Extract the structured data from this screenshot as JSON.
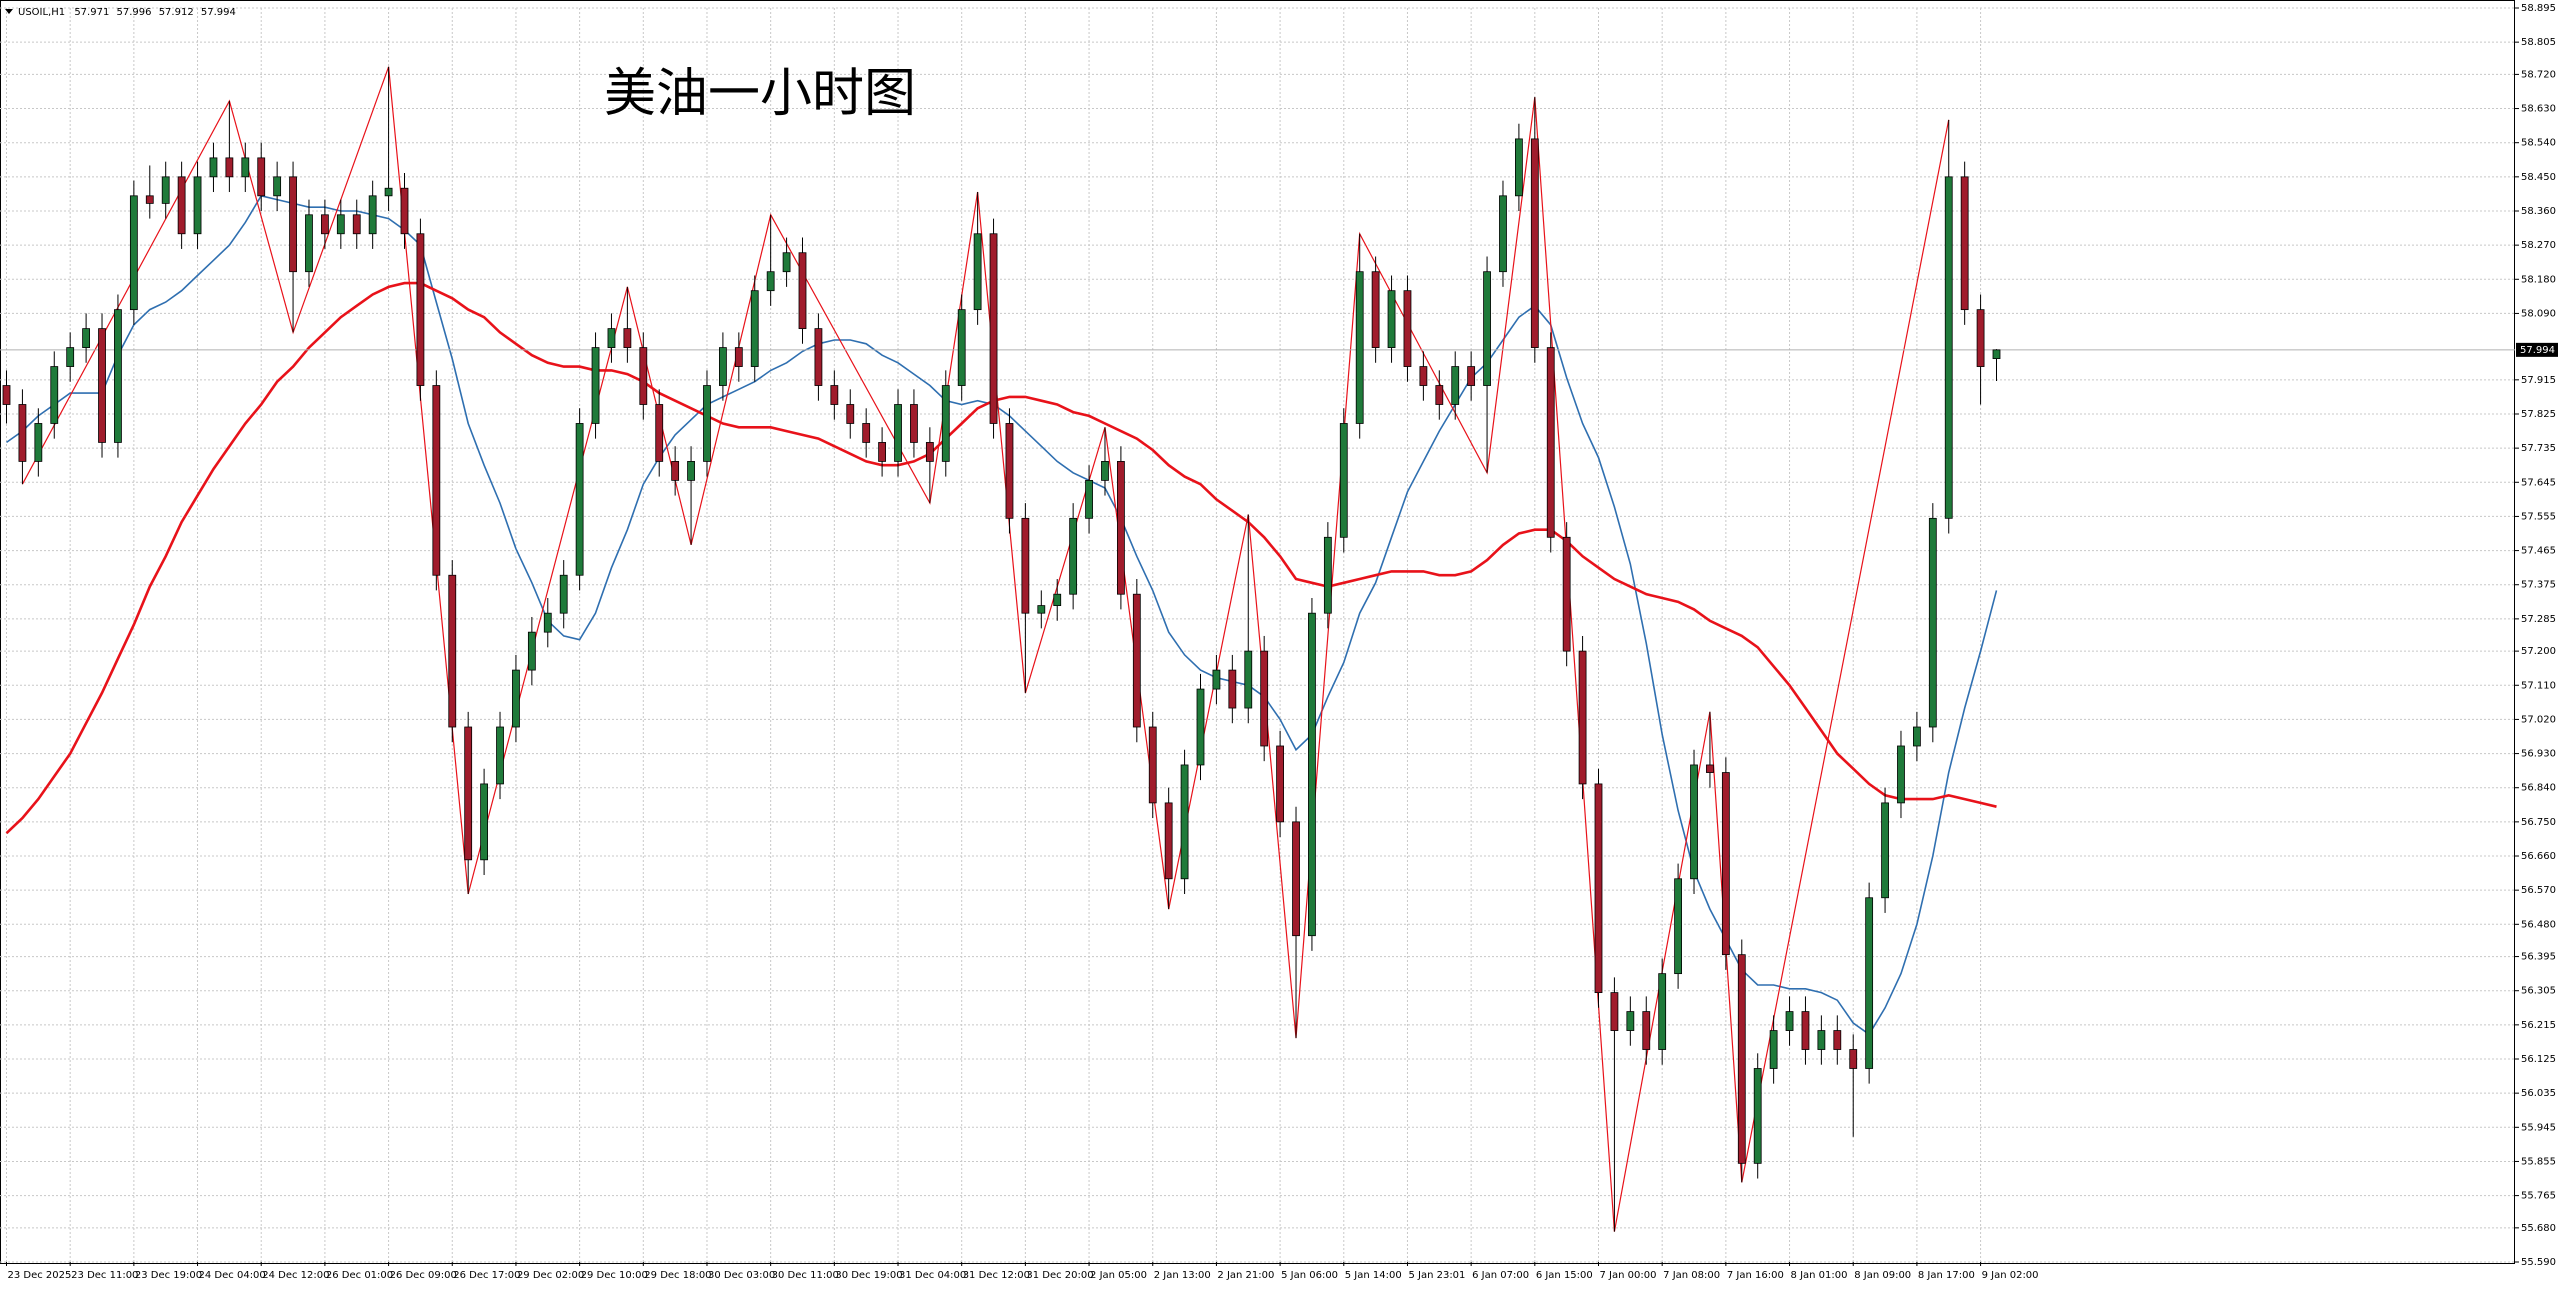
{
  "chart_data": {
    "type": "candlestick",
    "title": "美油一小时图",
    "symbol": "USOIL,H1",
    "bull_color": "#1f7a3a",
    "bear_color": "#a01c2c",
    "grid": true,
    "ylim": [
      55.59,
      58.895
    ],
    "yticks": [
      {
        "value": 55.59,
        "label": "55.590"
      },
      {
        "value": 55.68,
        "label": "55.680"
      },
      55.765,
      55.855,
      55.945,
      56.035,
      56.125,
      56.215,
      56.305,
      56.395,
      {
        "value": 56.48,
        "label": "56.480"
      },
      {
        "value": 56.57,
        "label": "56.570"
      },
      {
        "value": 56.66,
        "label": "56.660"
      },
      {
        "value": 56.75,
        "label": "56.750"
      },
      {
        "value": 56.84,
        "label": "56.840"
      },
      {
        "value": 56.93,
        "label": "56.930"
      },
      {
        "value": 57.02,
        "label": "57.020"
      },
      {
        "value": 57.11,
        "label": "57.110"
      },
      {
        "value": 57.2,
        "label": "57.200"
      },
      57.285,
      57.375,
      57.465,
      57.555,
      57.645,
      57.735,
      57.825,
      57.915,
      {
        "value": 58.09,
        "label": "58.090"
      },
      {
        "value": 58.18,
        "label": "58.180"
      },
      {
        "value": 58.27,
        "label": "58.270"
      },
      {
        "value": 58.36,
        "label": "58.360"
      },
      {
        "value": 58.45,
        "label": "58.450"
      },
      {
        "value": 58.54,
        "label": "58.540"
      },
      {
        "value": 58.63,
        "label": "58.630"
      },
      {
        "value": 58.72,
        "label": "58.720"
      },
      58.805,
      58.895
    ],
    "categories": [
      "23 Dec 2025",
      null,
      null,
      null,
      "23 Dec 11:00",
      null,
      null,
      null,
      "23 Dec 19:00",
      null,
      null,
      null,
      "24 Dec 04:00",
      null,
      null,
      null,
      "24 Dec 12:00",
      null,
      null,
      null,
      "26 Dec 01:00",
      null,
      null,
      null,
      "26 Dec 09:00",
      null,
      null,
      null,
      "26 Dec 17:00",
      null,
      null,
      null,
      "29 Dec 02:00",
      null,
      null,
      null,
      "29 Dec 10:00",
      null,
      null,
      null,
      "29 Dec 18:00",
      null,
      null,
      null,
      "30 Dec 03:00",
      null,
      null,
      null,
      "30 Dec 11:00",
      null,
      null,
      null,
      "30 Dec 19:00",
      null,
      null,
      null,
      "31 Dec 04:00",
      null,
      null,
      null,
      "31 Dec 12:00",
      null,
      null,
      null,
      "31 Dec 20:00",
      null,
      null,
      null,
      "2 Jan 05:00",
      null,
      null,
      null,
      "2 Jan 13:00",
      null,
      null,
      null,
      "2 Jan 21:00",
      null,
      null,
      null,
      "5 Jan 06:00",
      null,
      null,
      null,
      "5 Jan 14:00",
      null,
      null,
      null,
      "5 Jan 23:01",
      null,
      null,
      null,
      "6 Jan 07:00",
      null,
      null,
      null,
      "6 Jan 15:00",
      null,
      null,
      null,
      "7 Jan 00:00",
      null,
      null,
      null,
      "7 Jan 08:00",
      null,
      null,
      null,
      "7 Jan 16:00",
      null,
      null,
      null,
      "8 Jan 01:00",
      null,
      null,
      null,
      "8 Jan 09:00",
      null,
      null,
      null,
      "8 Jan 17:00",
      null,
      null,
      null,
      "9 Jan 02:00",
      null
    ],
    "ohlc": [
      [
        57.9,
        57.94,
        57.8,
        57.85
      ],
      [
        57.85,
        57.89,
        57.64,
        57.7
      ],
      [
        57.7,
        57.84,
        57.66,
        57.8
      ],
      [
        57.8,
        57.99,
        57.76,
        57.95
      ],
      [
        57.95,
        58.04,
        57.91,
        58.0
      ],
      [
        58.0,
        58.09,
        57.96,
        58.05
      ],
      [
        58.05,
        58.09,
        57.71,
        57.75
      ],
      [
        57.75,
        58.14,
        57.71,
        58.1
      ],
      [
        58.1,
        58.44,
        58.06,
        58.4
      ],
      [
        58.4,
        58.48,
        58.34,
        58.38
      ],
      [
        58.38,
        58.49,
        58.34,
        58.45
      ],
      [
        58.45,
        58.49,
        58.26,
        58.3
      ],
      [
        58.3,
        58.49,
        58.26,
        58.45
      ],
      [
        58.45,
        58.54,
        58.41,
        58.5
      ],
      [
        58.5,
        58.65,
        58.41,
        58.45
      ],
      [
        58.45,
        58.54,
        58.41,
        58.5
      ],
      [
        58.5,
        58.54,
        58.36,
        58.4
      ],
      [
        58.4,
        58.49,
        58.36,
        58.45
      ],
      [
        58.45,
        58.49,
        58.04,
        58.2
      ],
      [
        58.2,
        58.39,
        58.16,
        58.35
      ],
      [
        58.35,
        58.39,
        58.26,
        58.3
      ],
      [
        58.3,
        58.39,
        58.26,
        58.35
      ],
      [
        58.35,
        58.39,
        58.26,
        58.3
      ],
      [
        58.3,
        58.44,
        58.26,
        58.4
      ],
      [
        58.4,
        58.74,
        58.36,
        58.42
      ],
      [
        58.42,
        58.46,
        58.26,
        58.3
      ],
      [
        58.3,
        58.34,
        57.86,
        57.9
      ],
      [
        57.9,
        57.94,
        57.36,
        57.4
      ],
      [
        57.4,
        57.44,
        56.96,
        57.0
      ],
      [
        57.0,
        57.04,
        56.56,
        56.65
      ],
      [
        56.65,
        56.89,
        56.61,
        56.85
      ],
      [
        56.85,
        57.04,
        56.81,
        57.0
      ],
      [
        57.0,
        57.19,
        56.96,
        57.15
      ],
      [
        57.15,
        57.29,
        57.11,
        57.25
      ],
      [
        57.25,
        57.34,
        57.21,
        57.3
      ],
      [
        57.3,
        57.44,
        57.26,
        57.4
      ],
      [
        57.4,
        57.84,
        57.36,
        57.8
      ],
      [
        57.8,
        58.04,
        57.76,
        58.0
      ],
      [
        58.0,
        58.09,
        57.96,
        58.05
      ],
      [
        58.05,
        58.16,
        57.96,
        58.0
      ],
      [
        58.0,
        58.04,
        57.81,
        57.85
      ],
      [
        57.85,
        57.89,
        57.66,
        57.7
      ],
      [
        57.7,
        57.74,
        57.61,
        57.65
      ],
      [
        57.65,
        57.74,
        57.48,
        57.7
      ],
      [
        57.7,
        57.94,
        57.66,
        57.9
      ],
      [
        57.9,
        58.04,
        57.86,
        58.0
      ],
      [
        58.0,
        58.04,
        57.91,
        57.95
      ],
      [
        57.95,
        58.19,
        57.91,
        58.15
      ],
      [
        58.15,
        58.35,
        58.11,
        58.2
      ],
      [
        58.2,
        58.29,
        58.16,
        58.25
      ],
      [
        58.25,
        58.29,
        58.01,
        58.05
      ],
      [
        58.05,
        58.09,
        57.86,
        57.9
      ],
      [
        57.9,
        57.94,
        57.81,
        57.85
      ],
      [
        57.85,
        57.89,
        57.76,
        57.8
      ],
      [
        57.8,
        57.84,
        57.71,
        57.75
      ],
      [
        57.75,
        57.79,
        57.66,
        57.7
      ],
      [
        57.7,
        57.89,
        57.66,
        57.85
      ],
      [
        57.85,
        57.89,
        57.71,
        57.75
      ],
      [
        57.75,
        57.79,
        57.59,
        57.7
      ],
      [
        57.7,
        57.94,
        57.66,
        57.9
      ],
      [
        57.9,
        58.14,
        57.86,
        58.1
      ],
      [
        58.1,
        58.41,
        58.06,
        58.3
      ],
      [
        58.3,
        58.34,
        57.76,
        57.8
      ],
      [
        57.8,
        57.84,
        57.51,
        57.55
      ],
      [
        57.55,
        57.59,
        57.09,
        57.3
      ],
      [
        57.3,
        57.36,
        57.26,
        57.32
      ],
      [
        57.32,
        57.39,
        57.28,
        57.35
      ],
      [
        57.35,
        57.59,
        57.31,
        57.55
      ],
      [
        57.55,
        57.69,
        57.51,
        57.65
      ],
      [
        57.65,
        57.79,
        57.61,
        57.7
      ],
      [
        57.7,
        57.74,
        57.31,
        57.35
      ],
      [
        57.35,
        57.39,
        56.96,
        57.0
      ],
      [
        57.0,
        57.04,
        56.76,
        56.8
      ],
      [
        56.8,
        56.84,
        56.52,
        56.6
      ],
      [
        56.6,
        56.94,
        56.56,
        56.9
      ],
      [
        56.9,
        57.14,
        56.86,
        57.1
      ],
      [
        57.1,
        57.19,
        57.06,
        57.15
      ],
      [
        57.15,
        57.19,
        57.01,
        57.05
      ],
      [
        57.05,
        57.56,
        57.01,
        57.2
      ],
      [
        57.2,
        57.24,
        56.91,
        56.95
      ],
      [
        56.95,
        56.99,
        56.71,
        56.75
      ],
      [
        56.75,
        56.79,
        56.18,
        56.45
      ],
      [
        56.45,
        57.34,
        56.41,
        57.3
      ],
      [
        57.3,
        57.54,
        57.26,
        57.5
      ],
      [
        57.5,
        57.84,
        57.46,
        57.8
      ],
      [
        57.8,
        58.3,
        57.76,
        58.2
      ],
      [
        58.2,
        58.24,
        57.96,
        58.0
      ],
      [
        58.0,
        58.19,
        57.96,
        58.15
      ],
      [
        58.15,
        58.19,
        57.91,
        57.95
      ],
      [
        57.95,
        57.99,
        57.86,
        57.9
      ],
      [
        57.9,
        57.94,
        57.81,
        57.85
      ],
      [
        57.85,
        57.99,
        57.81,
        57.95
      ],
      [
        57.95,
        57.99,
        57.86,
        57.9
      ],
      [
        57.9,
        58.24,
        57.67,
        58.2
      ],
      [
        58.2,
        58.44,
        58.16,
        58.4
      ],
      [
        58.4,
        58.59,
        58.36,
        58.55
      ],
      [
        58.55,
        58.66,
        57.96,
        58.0
      ],
      [
        58.0,
        58.04,
        57.46,
        57.5
      ],
      [
        57.5,
        57.54,
        57.16,
        57.2
      ],
      [
        57.2,
        57.24,
        56.81,
        56.85
      ],
      [
        56.85,
        56.89,
        56.26,
        56.3
      ],
      [
        56.3,
        56.34,
        55.67,
        56.2
      ],
      [
        56.2,
        56.29,
        56.16,
        56.25
      ],
      [
        56.25,
        56.29,
        56.11,
        56.15
      ],
      [
        56.15,
        56.39,
        56.11,
        56.35
      ],
      [
        56.35,
        56.64,
        56.31,
        56.6
      ],
      [
        56.6,
        56.94,
        56.56,
        56.9
      ],
      [
        56.9,
        57.04,
        56.84,
        56.88
      ],
      [
        56.88,
        56.92,
        56.36,
        56.4
      ],
      [
        56.4,
        56.44,
        55.8,
        55.85
      ],
      [
        55.85,
        56.14,
        55.81,
        56.1
      ],
      [
        56.1,
        56.24,
        56.06,
        56.2
      ],
      [
        56.2,
        56.29,
        56.16,
        56.25
      ],
      [
        56.25,
        56.29,
        56.11,
        56.15
      ],
      [
        56.15,
        56.24,
        56.11,
        56.2
      ],
      [
        56.2,
        56.24,
        56.11,
        56.15
      ],
      [
        56.15,
        56.19,
        55.92,
        56.1
      ],
      [
        56.1,
        56.59,
        56.06,
        56.55
      ],
      [
        56.55,
        56.84,
        56.51,
        56.8
      ],
      [
        56.8,
        56.99,
        56.76,
        56.95
      ],
      [
        56.95,
        57.04,
        56.91,
        57.0
      ],
      [
        57.0,
        57.59,
        56.96,
        57.55
      ],
      [
        57.55,
        58.6,
        57.51,
        58.45
      ],
      [
        58.45,
        58.49,
        58.06,
        58.1
      ],
      [
        58.1,
        58.14,
        57.85,
        57.95
      ],
      [
        57.971,
        57.996,
        57.912,
        57.994
      ]
    ],
    "series": [
      {
        "color": "#2f6fb0",
        "values": [
          57.75,
          57.78,
          57.82,
          57.85,
          57.88,
          57.88,
          57.88,
          57.98,
          58.06,
          58.1,
          58.12,
          58.15,
          58.19,
          58.23,
          58.27,
          58.33,
          58.4,
          58.39,
          58.38,
          58.37,
          58.37,
          58.36,
          58.36,
          58.35,
          58.34,
          58.31,
          58.27,
          58.12,
          57.97,
          57.8,
          57.69,
          57.59,
          57.47,
          57.38,
          57.28,
          57.24,
          57.23,
          57.3,
          57.42,
          57.52,
          57.64,
          57.71,
          57.77,
          57.81,
          57.85,
          57.87,
          57.89,
          57.91,
          57.94,
          57.96,
          57.99,
          58.01,
          58.02,
          58.02,
          58.01,
          57.98,
          57.96,
          57.93,
          57.9,
          57.86,
          57.85,
          57.86,
          57.85,
          57.82,
          57.78,
          57.74,
          57.7,
          57.67,
          57.65,
          57.63,
          57.55,
          57.45,
          57.36,
          57.25,
          57.19,
          57.15,
          57.13,
          57.12,
          57.11,
          57.08,
          57.02,
          56.94,
          56.98,
          57.08,
          57.17,
          57.3,
          57.38,
          57.5,
          57.62,
          57.7,
          57.78,
          57.85,
          57.92,
          57.96,
          58.02,
          58.08,
          58.11,
          58.06,
          57.92,
          57.8,
          57.71,
          57.58,
          57.43,
          57.22,
          56.98,
          56.78,
          56.62,
          56.52,
          56.44,
          56.36,
          56.32,
          56.32,
          56.31,
          56.31,
          56.3,
          56.28,
          56.22,
          56.19,
          56.26,
          56.35,
          56.48,
          56.66,
          56.88,
          57.05,
          57.2,
          57.36
        ]
      },
      {
        "color": "#e8121a",
        "values": [
          56.72,
          56.76,
          56.81,
          56.87,
          56.93,
          57.01,
          57.09,
          57.18,
          57.27,
          57.37,
          57.45,
          57.54,
          57.61,
          57.68,
          57.74,
          57.8,
          57.85,
          57.91,
          57.95,
          58.0,
          58.04,
          58.08,
          58.11,
          58.14,
          58.16,
          58.17,
          58.17,
          58.15,
          58.13,
          58.1,
          58.08,
          58.04,
          58.01,
          57.98,
          57.96,
          57.95,
          57.95,
          57.94,
          57.94,
          57.93,
          57.91,
          57.88,
          57.86,
          57.84,
          57.82,
          57.8,
          57.79,
          57.79,
          57.79,
          57.78,
          57.77,
          57.76,
          57.74,
          57.72,
          57.7,
          57.69,
          57.69,
          57.7,
          57.72,
          57.76,
          57.8,
          57.84,
          57.86,
          57.87,
          57.87,
          57.86,
          57.85,
          57.83,
          57.82,
          57.8,
          57.78,
          57.76,
          57.73,
          57.69,
          57.66,
          57.64,
          57.6,
          57.57,
          57.54,
          57.5,
          57.45,
          57.39,
          57.38,
          57.37,
          57.38,
          57.39,
          57.4,
          57.41,
          57.41,
          57.41,
          57.4,
          57.4,
          57.41,
          57.44,
          57.48,
          57.51,
          57.52,
          57.52,
          57.49,
          57.45,
          57.42,
          57.39,
          57.37,
          57.35,
          57.34,
          57.33,
          57.31,
          57.28,
          57.26,
          57.24,
          57.21,
          57.16,
          57.11,
          57.05,
          56.99,
          56.93,
          56.89,
          56.85,
          56.82,
          56.81,
          56.81,
          56.81,
          56.82,
          56.81,
          56.8,
          56.79
        ]
      }
    ],
    "zigzag": {
      "color": "#e8121a",
      "x": [
        1,
        14,
        18,
        24,
        29,
        39,
        43,
        48,
        58,
        61,
        64,
        69,
        73,
        78,
        81,
        85,
        93,
        96,
        101,
        107,
        109,
        122
      ],
      "values": [
        57.64,
        58.65,
        58.04,
        58.74,
        56.56,
        58.16,
        57.48,
        58.35,
        57.59,
        58.41,
        57.09,
        57.79,
        56.52,
        57.56,
        56.18,
        58.3,
        57.67,
        58.66,
        55.67,
        57.04,
        55.8,
        58.6
      ]
    }
  }
}
